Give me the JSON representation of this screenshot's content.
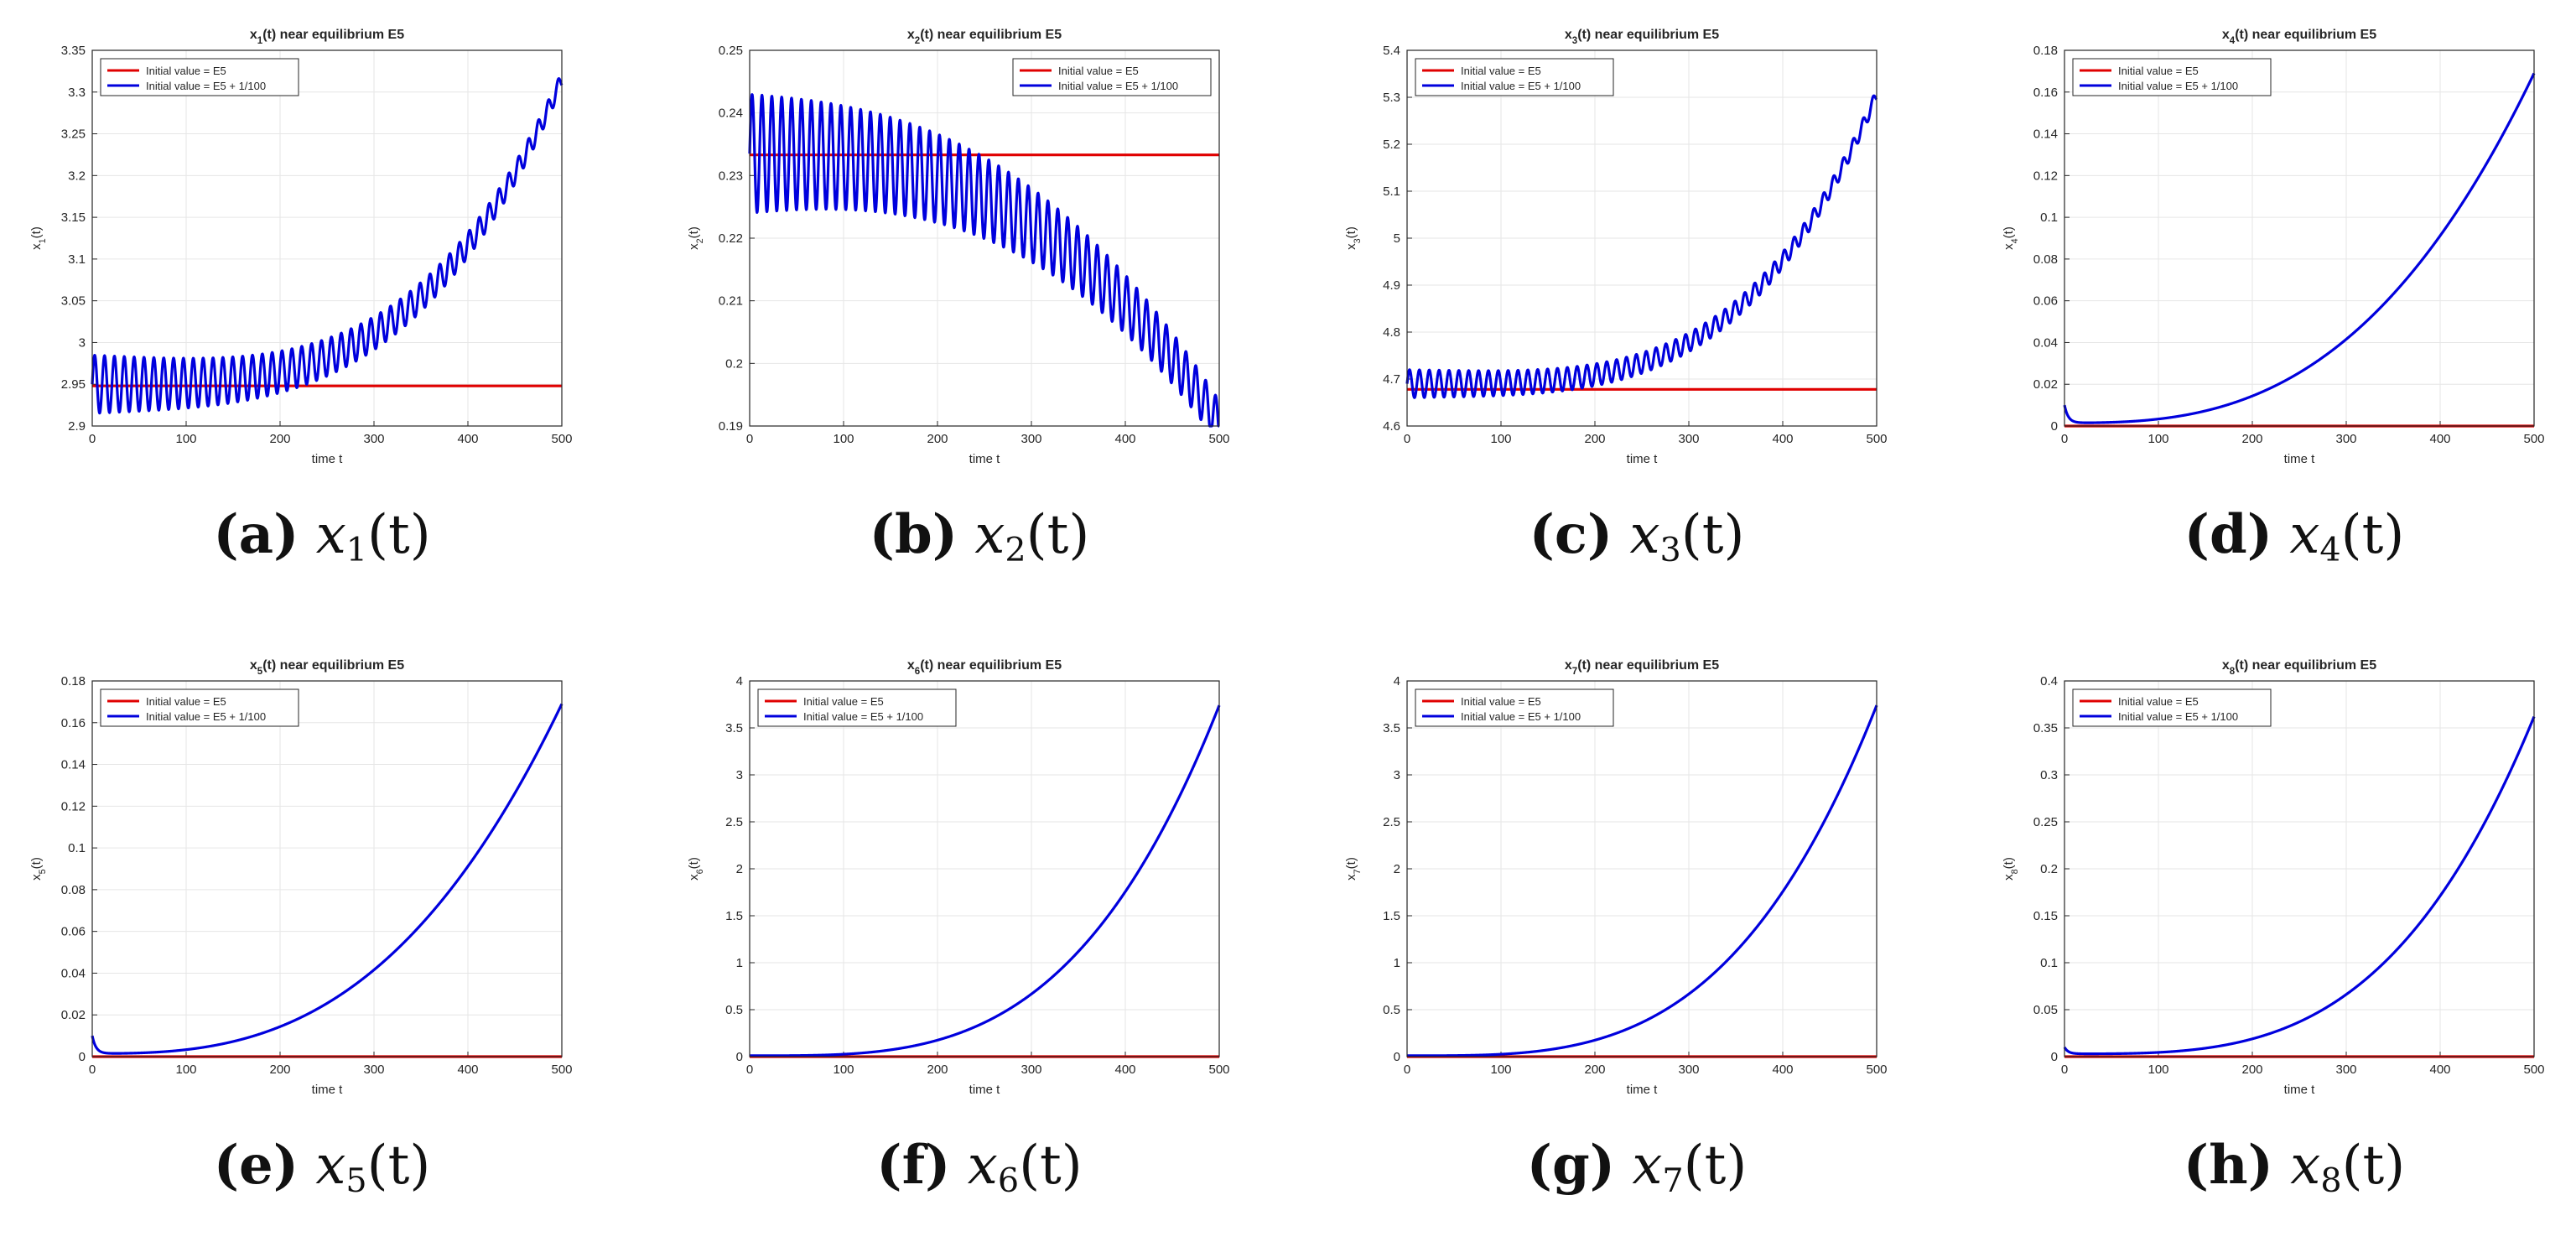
{
  "figure": {
    "panels": [
      {
        "caption": {
          "label": "(a)",
          "var": "x",
          "sub": "1",
          "arg": "(t)"
        }
      },
      {
        "caption": {
          "label": "(b)",
          "var": "x",
          "sub": "2",
          "arg": "(t)"
        }
      },
      {
        "caption": {
          "label": "(c)",
          "var": "x",
          "sub": "3",
          "arg": "(t)"
        }
      },
      {
        "caption": {
          "label": "(d)",
          "var": "x",
          "sub": "4",
          "arg": "(t)"
        }
      },
      {
        "caption": {
          "label": "(e)",
          "var": "x",
          "sub": "5",
          "arg": "(t)"
        }
      },
      {
        "caption": {
          "label": "(f)",
          "var": "x",
          "sub": "6",
          "arg": "(t)"
        }
      },
      {
        "caption": {
          "label": "(g)",
          "var": "x",
          "sub": "7",
          "arg": "(t)"
        }
      },
      {
        "caption": {
          "label": "(h)",
          "var": "x",
          "sub": "8",
          "arg": "(t)"
        }
      }
    ]
  },
  "colors": {
    "equilibrium": "#e00000",
    "perturbed": "#0000dd",
    "grid": "#e6e6e6",
    "axis": "#262626"
  },
  "chart_data": [
    {
      "type": "line",
      "title": "x_1(t) near equilibrium E5",
      "xlabel": "time t",
      "ylabel": "x_1(t)",
      "xlim": [
        0,
        500
      ],
      "ylim": [
        2.9,
        3.35
      ],
      "xticks": [
        "0",
        "100",
        "200",
        "300",
        "400",
        "500"
      ],
      "yticks": [
        "2.9",
        "2.95",
        "3",
        "3.05",
        "3.1",
        "3.15",
        "3.2",
        "3.25",
        "3.3",
        "3.35"
      ],
      "legend": "top-left",
      "series": [
        {
          "name": "Initial value = E5",
          "color": "#e00000",
          "shape": "constant",
          "value": 2.948
        },
        {
          "name": "Initial value = E5 + 1/100",
          "color": "#0000dd",
          "shape": "oscillating-growth",
          "base": 2.95,
          "end": 3.315,
          "growth_power": 3.5,
          "osc_start": 0.035,
          "osc_end": 0.01,
          "period": 10.5
        }
      ]
    },
    {
      "type": "line",
      "title": "x_2(t) near equilibrium E5",
      "xlabel": "time t",
      "ylabel": "x_2(t)",
      "xlim": [
        0,
        500
      ],
      "ylim": [
        0.19,
        0.25
      ],
      "xticks": [
        "0",
        "100",
        "200",
        "300",
        "400",
        "500"
      ],
      "yticks": [
        "0.19",
        "0.2",
        "0.21",
        "0.22",
        "0.23",
        "0.24",
        "0.25"
      ],
      "legend": "top-right",
      "series": [
        {
          "name": "Initial value = E5",
          "color": "#e00000",
          "shape": "constant",
          "value": 0.2333
        },
        {
          "name": "Initial value = E5 + 1/100",
          "color": "#0000dd",
          "shape": "oscillating-growth",
          "base": 0.2335,
          "end": 0.1905,
          "growth_power": 2.6,
          "osc_start": 0.0095,
          "osc_end": 0.0035,
          "period": 10.5
        }
      ]
    },
    {
      "type": "line",
      "title": "x_3(t) near equilibrium E5",
      "xlabel": "time t",
      "ylabel": "x_3(t)",
      "xlim": [
        0,
        500
      ],
      "ylim": [
        4.6,
        5.4
      ],
      "xticks": [
        "0",
        "100",
        "200",
        "300",
        "400",
        "500"
      ],
      "yticks": [
        "4.6",
        "4.7",
        "4.8",
        "4.9",
        "5",
        "5.1",
        "5.2",
        "5.3",
        "5.4"
      ],
      "legend": "top-left",
      "series": [
        {
          "name": "Initial value = E5",
          "color": "#e00000",
          "shape": "constant",
          "value": 4.678
        },
        {
          "name": "Initial value = E5 + 1/100",
          "color": "#0000dd",
          "shape": "oscillating-growth",
          "base": 4.69,
          "end": 5.305,
          "growth_power": 3.8,
          "osc_start": 0.03,
          "osc_end": 0.014,
          "period": 10.5
        }
      ]
    },
    {
      "type": "line",
      "title": "x_4(t) near equilibrium E5",
      "xlabel": "time t",
      "ylabel": "x_4(t)",
      "xlim": [
        0,
        500
      ],
      "ylim": [
        0,
        0.18
      ],
      "xticks": [
        "0",
        "100",
        "200",
        "300",
        "400",
        "500"
      ],
      "yticks": [
        "0",
        "0.02",
        "0.04",
        "0.06",
        "0.08",
        "0.1",
        "0.12",
        "0.14",
        "0.16",
        "0.18"
      ],
      "legend": "top-left",
      "series": [
        {
          "name": "Initial value = E5",
          "color": "#e00000",
          "shape": "constant",
          "value": 0
        },
        {
          "name": "Initial value = E5 + 1/100",
          "color": "#0000dd",
          "shape": "smooth-growth",
          "start": 0.01,
          "dip": 0.0015,
          "end": 0.169,
          "growth_power": 2.8
        }
      ]
    },
    {
      "type": "line",
      "title": "x_5(t) near equilibrium E5",
      "xlabel": "time t",
      "ylabel": "x_5(t)",
      "xlim": [
        0,
        500
      ],
      "ylim": [
        0,
        0.18
      ],
      "xticks": [
        "0",
        "100",
        "200",
        "300",
        "400",
        "500"
      ],
      "yticks": [
        "0",
        "0.02",
        "0.04",
        "0.06",
        "0.08",
        "0.1",
        "0.12",
        "0.14",
        "0.16",
        "0.18"
      ],
      "legend": "top-left",
      "series": [
        {
          "name": "Initial value = E5",
          "color": "#e00000",
          "shape": "constant",
          "value": 0
        },
        {
          "name": "Initial value = E5 + 1/100",
          "color": "#0000dd",
          "shape": "smooth-growth",
          "start": 0.01,
          "dip": 0.0015,
          "end": 0.169,
          "growth_power": 2.8
        }
      ]
    },
    {
      "type": "line",
      "title": "x_6(t) near equilibrium E5",
      "xlabel": "time t",
      "ylabel": "x_6(t)",
      "xlim": [
        0,
        500
      ],
      "ylim": [
        0,
        4
      ],
      "xticks": [
        "0",
        "100",
        "200",
        "300",
        "400",
        "500"
      ],
      "yticks": [
        "0",
        "0.5",
        "1",
        "1.5",
        "2",
        "2.5",
        "3",
        "3.5",
        "4"
      ],
      "legend": "top-left",
      "series": [
        {
          "name": "Initial value = E5",
          "color": "#e00000",
          "shape": "constant",
          "value": 0
        },
        {
          "name": "Initial value = E5 + 1/100",
          "color": "#0000dd",
          "shape": "smooth-growth",
          "start": 0.01,
          "dip": 0.01,
          "end": 3.74,
          "growth_power": 3.4
        }
      ]
    },
    {
      "type": "line",
      "title": "x_7(t) near equilibrium E5",
      "xlabel": "time t",
      "ylabel": "x_7(t)",
      "xlim": [
        0,
        500
      ],
      "ylim": [
        0,
        4
      ],
      "xticks": [
        "0",
        "100",
        "200",
        "300",
        "400",
        "500"
      ],
      "yticks": [
        "0",
        "0.5",
        "1",
        "1.5",
        "2",
        "2.5",
        "3",
        "3.5",
        "4"
      ],
      "legend": "top-left",
      "series": [
        {
          "name": "Initial value = E5",
          "color": "#e00000",
          "shape": "constant",
          "value": 0
        },
        {
          "name": "Initial value = E5 + 1/100",
          "color": "#0000dd",
          "shape": "smooth-growth",
          "start": 0.01,
          "dip": 0.01,
          "end": 3.74,
          "growth_power": 3.4
        }
      ]
    },
    {
      "type": "line",
      "title": "x_8(t) near equilibrium E5",
      "xlabel": "time t",
      "ylabel": "x_8(t)",
      "xlim": [
        0,
        500
      ],
      "ylim": [
        0,
        0.4
      ],
      "xticks": [
        "0",
        "100",
        "200",
        "300",
        "400",
        "500"
      ],
      "yticks": [
        "0",
        "0.05",
        "0.1",
        "0.15",
        "0.2",
        "0.25",
        "0.3",
        "0.35",
        "0.4"
      ],
      "legend": "top-left",
      "series": [
        {
          "name": "Initial value = E5",
          "color": "#e00000",
          "shape": "constant",
          "value": 0
        },
        {
          "name": "Initial value = E5 + 1/100",
          "color": "#0000dd",
          "shape": "smooth-growth",
          "start": 0.01,
          "dip": 0.003,
          "end": 0.362,
          "growth_power": 3.4
        }
      ]
    }
  ]
}
